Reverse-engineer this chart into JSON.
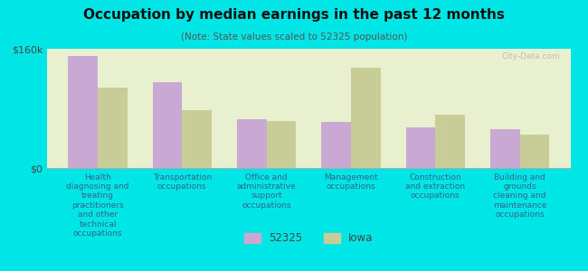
{
  "title": "Occupation by median earnings in the past 12 months",
  "subtitle": "(Note: State values scaled to 52325 population)",
  "background_color": "#00e5e5",
  "plot_bg_color_top": "#e8f0d0",
  "plot_bg_color_bottom": "#f5f5e8",
  "bar_color_52325": "#c9a8d4",
  "bar_color_iowa": "#c8cc96",
  "ylim": [
    0,
    160000
  ],
  "yticks": [
    0,
    160000
  ],
  "ytick_labels": [
    "$0",
    "$160k"
  ],
  "categories": [
    "Health\ndiagnosing and\ntreating\npractitioners\nand other\ntechnical\noccupations",
    "Transportation\noccupations",
    "Office and\nadministrative\nsupport\noccupations",
    "Management\noccupations",
    "Construction\nand extraction\noccupations",
    "Building and\ngrounds\ncleaning and\nmaintenance\noccupations"
  ],
  "values_52325": [
    150000,
    115000,
    65000,
    62000,
    55000,
    52000
  ],
  "values_iowa": [
    108000,
    78000,
    63000,
    135000,
    72000,
    45000
  ],
  "legend_labels": [
    "52325",
    "Iowa"
  ],
  "watermark": "City-Data.com"
}
